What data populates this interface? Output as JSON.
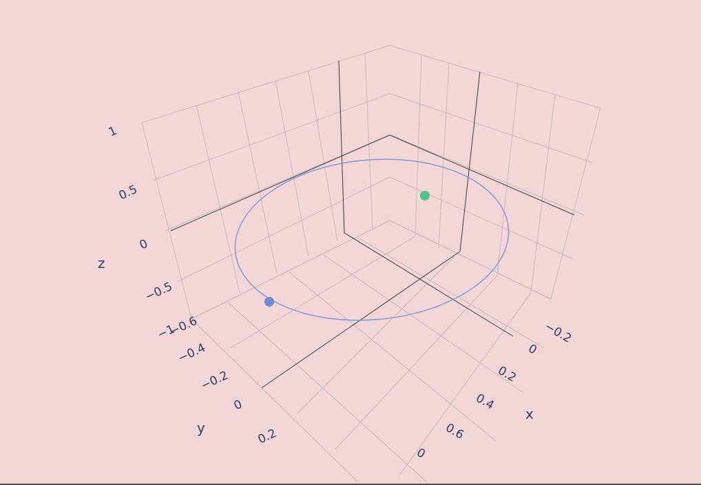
{
  "chart_data": {
    "type": "scatter3d",
    "axes": {
      "x": {
        "title": "x",
        "ticks": [
          "−0.2",
          "0",
          "0.2",
          "0.4",
          "0.6",
          "0"
        ]
      },
      "y": {
        "title": "y",
        "ticks": [
          "−0.6",
          "−0.4",
          "−0.2",
          "0",
          "0.2"
        ]
      },
      "z": {
        "title": "z",
        "ticks": [
          "1",
          "0.5",
          "0",
          "−0.5",
          "−1"
        ]
      }
    },
    "orbit": {
      "name": "",
      "color": "#7f9bd6",
      "mode": "lines",
      "shape": "closed ellipse in the z = 0 plane"
    },
    "markers": [
      {
        "name": "",
        "color": "#6f8bd0",
        "x": -0.21,
        "y": -0.4,
        "z": 0
      },
      {
        "name": "",
        "color": "#4cc38a",
        "x": 0.2,
        "y": -0.55,
        "z": 0.52
      }
    ]
  }
}
